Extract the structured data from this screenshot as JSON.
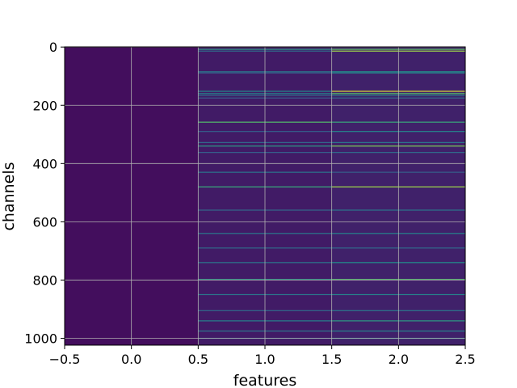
{
  "chart_data": {
    "type": "heatmap",
    "title": "",
    "xlabel": "features",
    "ylabel": "channels",
    "xlim": [
      -0.5,
      2.5
    ],
    "ylim": [
      1023.5,
      -0.5
    ],
    "y_inverted": true,
    "grid": true,
    "colormap": "viridis",
    "x_ticks": [
      -0.5,
      0.0,
      0.5,
      1.0,
      1.5,
      2.0,
      2.5
    ],
    "x_tick_labels": [
      "−0.5",
      "0.0",
      "0.5",
      "1.0",
      "1.5",
      "2.0",
      "2.5"
    ],
    "y_ticks": [
      0,
      200,
      400,
      600,
      800,
      1000
    ],
    "y_tick_labels": [
      "0",
      "200",
      "400",
      "600",
      "800",
      "1000"
    ],
    "columns": [
      0,
      1,
      2
    ],
    "rows": 1024,
    "value_range": [
      0,
      1
    ],
    "column_baseline": [
      0.04,
      0.08,
      0.1
    ],
    "highlights": [
      {
        "channel": 8,
        "values": [
          0.04,
          0.55,
          0.75
        ]
      },
      {
        "channel": 14,
        "values": [
          0.04,
          0.35,
          0.85
        ]
      },
      {
        "channel": 85,
        "values": [
          0.04,
          0.4,
          0.5
        ]
      },
      {
        "channel": 89,
        "values": [
          0.04,
          0.3,
          0.45
        ]
      },
      {
        "channel": 152,
        "values": [
          0.04,
          0.5,
          0.95
        ]
      },
      {
        "channel": 160,
        "values": [
          0.04,
          0.45,
          0.7
        ]
      },
      {
        "channel": 166,
        "values": [
          0.04,
          0.35,
          0.4
        ]
      },
      {
        "channel": 175,
        "values": [
          0.04,
          0.3,
          0.35
        ]
      },
      {
        "channel": 258,
        "values": [
          0.04,
          0.7,
          0.6
        ]
      },
      {
        "channel": 290,
        "values": [
          0.04,
          0.3,
          0.45
        ]
      },
      {
        "channel": 328,
        "values": [
          0.04,
          0.35,
          0.4
        ]
      },
      {
        "channel": 340,
        "values": [
          0.04,
          0.55,
          0.8
        ]
      },
      {
        "channel": 362,
        "values": [
          0.04,
          0.3,
          0.35
        ]
      },
      {
        "channel": 430,
        "values": [
          0.04,
          0.4,
          0.3
        ]
      },
      {
        "channel": 480,
        "values": [
          0.04,
          0.6,
          0.85
        ]
      },
      {
        "channel": 560,
        "values": [
          0.04,
          0.35,
          0.4
        ]
      },
      {
        "channel": 640,
        "values": [
          0.04,
          0.4,
          0.45
        ]
      },
      {
        "channel": 690,
        "values": [
          0.04,
          0.35,
          0.35
        ]
      },
      {
        "channel": 740,
        "values": [
          0.04,
          0.4,
          0.5
        ]
      },
      {
        "channel": 798,
        "values": [
          0.04,
          0.55,
          0.7
        ]
      },
      {
        "channel": 850,
        "values": [
          0.04,
          0.4,
          0.45
        ]
      },
      {
        "channel": 905,
        "values": [
          0.04,
          0.35,
          0.4
        ]
      },
      {
        "channel": 940,
        "values": [
          0.04,
          0.45,
          0.55
        ]
      },
      {
        "channel": 975,
        "values": [
          0.04,
          0.4,
          0.45
        ]
      },
      {
        "channel": 1000,
        "values": [
          0.04,
          0.35,
          0.5
        ]
      }
    ]
  }
}
